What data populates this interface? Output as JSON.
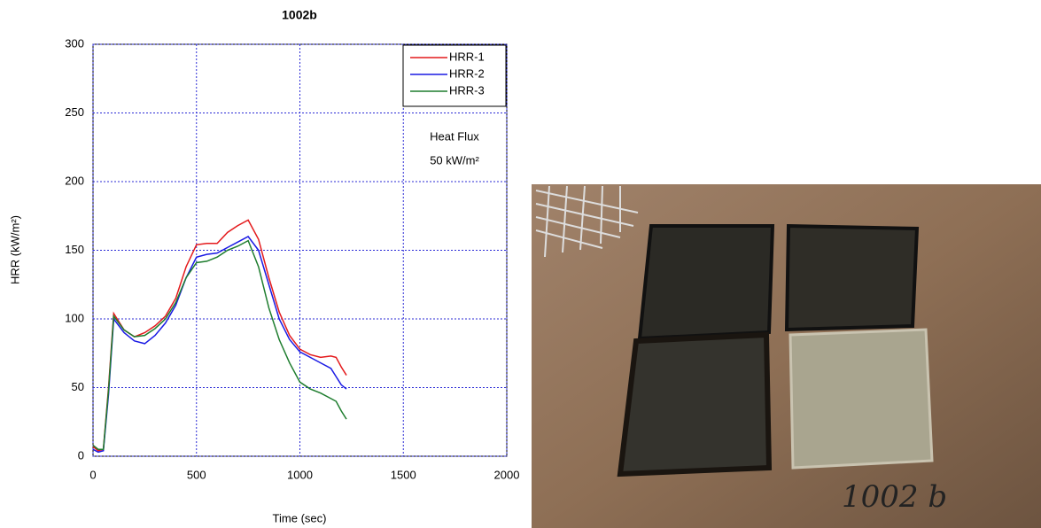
{
  "chart_data": {
    "type": "line",
    "title": "1002b",
    "x_label": "Time (sec)",
    "y_label": "HRR (kW/m²)",
    "annotations": [
      "Heat Flux",
      "50 kW/m²"
    ],
    "x": [
      0,
      25,
      50,
      75,
      100,
      150,
      200,
      250,
      300,
      350,
      400,
      450,
      500,
      550,
      600,
      650,
      700,
      750,
      800,
      850,
      900,
      950,
      1000,
      1050,
      1100,
      1150,
      1175,
      1200,
      1225
    ],
    "series": [
      {
        "name": "HRR-1",
        "color": "#e41a1c",
        "values": [
          7,
          4,
          5,
          50,
          104,
          92,
          87,
          90,
          95,
          102,
          115,
          138,
          154,
          155,
          155,
          163,
          168,
          172,
          158,
          130,
          105,
          88,
          78,
          74,
          72,
          73,
          72,
          65,
          59
        ]
      },
      {
        "name": "HRR-2",
        "color": "#1a1ae4",
        "values": [
          5,
          3,
          4,
          45,
          100,
          90,
          84,
          82,
          88,
          97,
          110,
          130,
          145,
          147,
          148,
          152,
          156,
          160,
          150,
          125,
          100,
          85,
          76,
          72,
          68,
          64,
          58,
          52,
          49
        ]
      },
      {
        "name": "HRR-3",
        "color": "#1e7d2e",
        "values": [
          8,
          5,
          5,
          48,
          102,
          92,
          87,
          88,
          93,
          100,
          112,
          130,
          141,
          142,
          145,
          150,
          153,
          157,
          138,
          108,
          85,
          68,
          54,
          49,
          46,
          42,
          40,
          33,
          27
        ]
      }
    ],
    "xlim": [
      0,
      2000
    ],
    "xticks": [
      0,
      500,
      1000,
      1500,
      2000
    ],
    "ylim": [
      0,
      300
    ],
    "yticks": [
      0,
      50,
      100,
      150,
      200,
      250,
      300
    ],
    "grid": true,
    "legend": "upper right"
  },
  "photo": {
    "label": "1002 b"
  }
}
